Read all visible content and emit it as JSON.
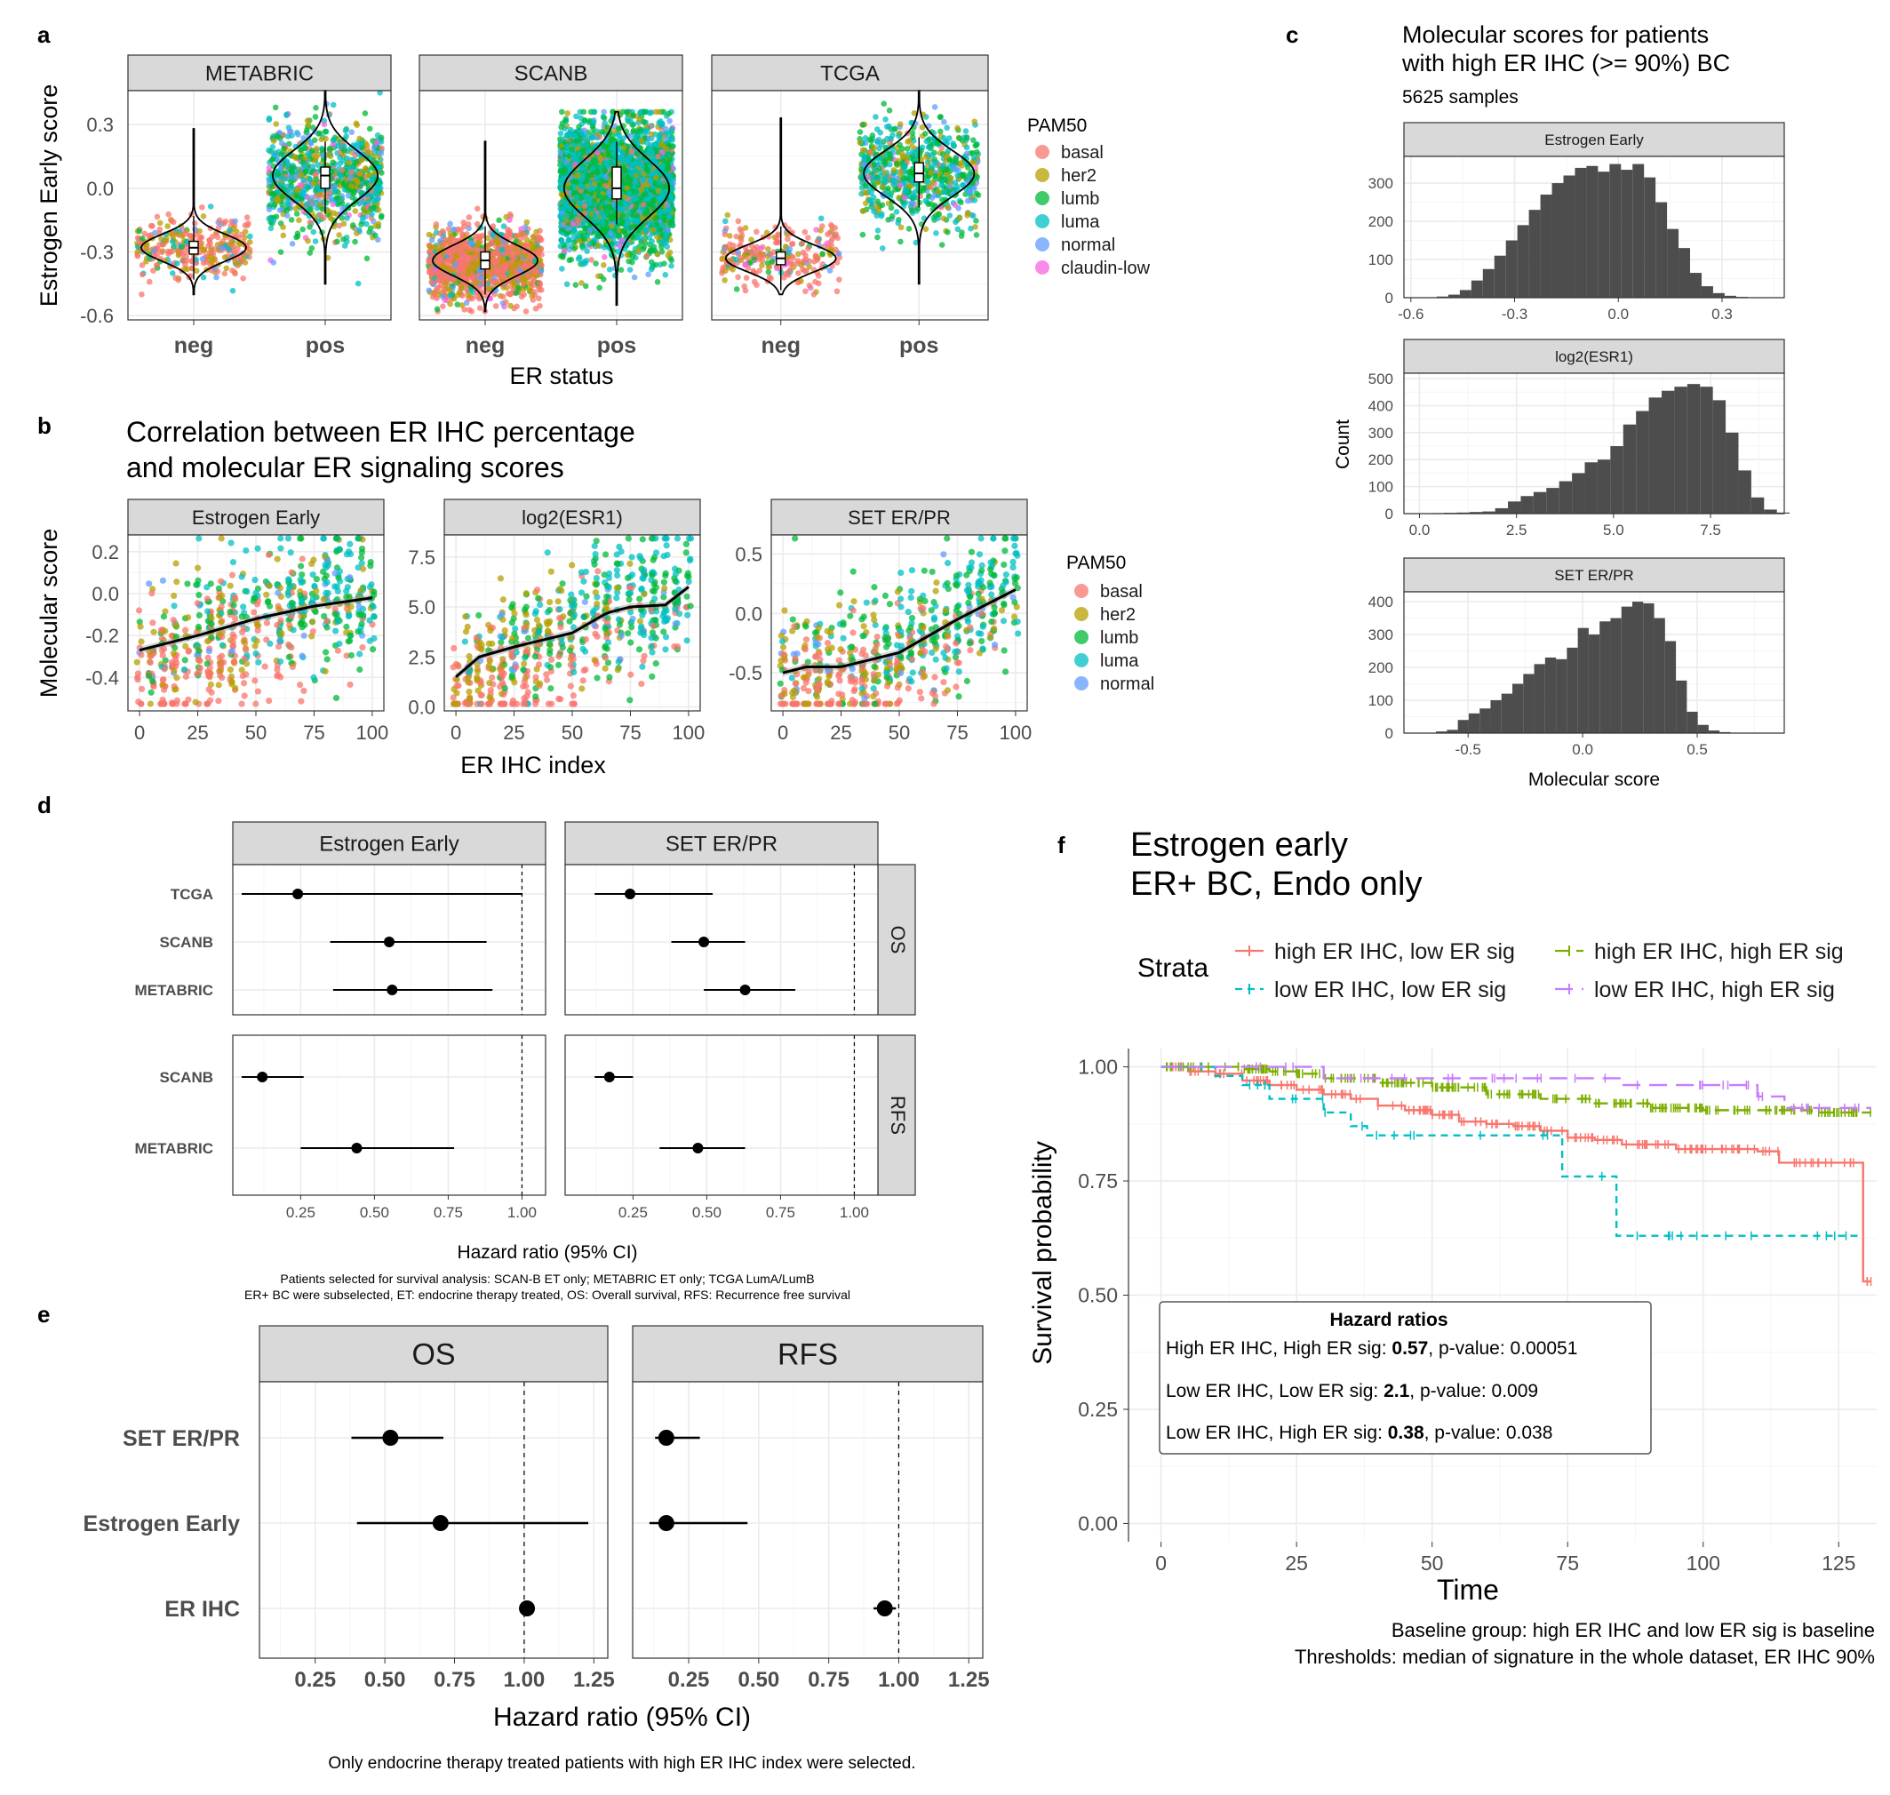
{
  "colors": {
    "strip_fill": "#d9d9d9",
    "grid_major": "#ebebeb",
    "grid_minor": "#f5f5f5",
    "hist_bar": "#4d4d4d",
    "pam50": {
      "basal": "#F8766D",
      "her2": "#B79F00",
      "lumb": "#00BA38",
      "luma": "#00BFC4",
      "normal": "#619CFF",
      "claudin-low": "#F564E3"
    },
    "strata": {
      "high_low": "#F8766D",
      "high_high": "#7CAE00",
      "low_low": "#00BFC4",
      "low_high": "#C77CFF"
    }
  },
  "panel_letters": {
    "a": "a",
    "b": "b",
    "c": "c",
    "d": "d",
    "e": "e",
    "f": "f"
  },
  "legend_pam50": {
    "title": "PAM50",
    "entries": [
      "basal",
      "her2",
      "lumb",
      "luma",
      "normal",
      "claudin-low"
    ]
  },
  "panel_a": {
    "ylabel": "Estrogen Early score",
    "xlabel": "ER status",
    "categories": [
      "neg",
      "pos"
    ],
    "yticks": [
      "0.3",
      "0.0",
      "-0.3",
      "-0.6"
    ],
    "ytick_values": [
      0.3,
      0.0,
      -0.3,
      -0.6
    ],
    "ylim": [
      -0.62,
      0.46
    ],
    "facets": [
      "METABRIC",
      "SCANB",
      "TCGA"
    ]
  },
  "panel_b": {
    "title_line1": "Correlation between ER IHC percentage",
    "title_line2": "and molecular ER signaling scores",
    "ylabel": "Molecular score",
    "xlabel": "ER IHC index",
    "xticks": [
      "0",
      "25",
      "50",
      "75",
      "100"
    ],
    "facets": [
      "Estrogen Early",
      "log2(ESR1)",
      "SET ER/PR"
    ],
    "yticks": [
      [
        "0.2",
        "0.0",
        "-0.2",
        "-0.4"
      ],
      [
        "7.5",
        "5.0",
        "2.5",
        "0.0"
      ],
      [
        "0.5",
        "0.0",
        "-0.5"
      ]
    ],
    "legend_entries": [
      "basal",
      "her2",
      "lumb",
      "luma",
      "normal"
    ]
  },
  "panel_c": {
    "title_line1": "Molecular scores for patients",
    "title_line2": "with high ER IHC (>= 90%) BC",
    "subtitle": "5625 samples",
    "ylabel": "Count",
    "xlabel": "Molecular score",
    "facets": [
      "Estrogen Early",
      "log2(ESR1)",
      "SET ER/PR"
    ],
    "xticks": [
      [
        "-0.6",
        "-0.3",
        "0.0",
        "0.3"
      ],
      [
        "0.0",
        "2.5",
        "5.0",
        "7.5"
      ],
      [
        "-0.5",
        "0.0",
        "0.5"
      ]
    ],
    "yticks": [
      [
        "300",
        "200",
        "100",
        "0"
      ],
      [
        "500",
        "400",
        "300",
        "200",
        "100",
        "0"
      ],
      [
        "400",
        "300",
        "200",
        "100",
        "0"
      ]
    ]
  },
  "panel_d": {
    "facets": [
      "Estrogen Early",
      "SET ER/PR"
    ],
    "rows": [
      "OS",
      "RFS"
    ],
    "xlabel": "Hazard ratio (95% CI)",
    "xticks": [
      "0.25",
      "0.50",
      "0.75",
      "1.00"
    ],
    "caption_line1": "Patients selected for survival analysis: SCAN-B ET only; METABRIC ET only; TCGA LumA/LumB",
    "caption_line2": "ER+ BC were subselected, ET: endocrine therapy treated, OS: Overall survival, RFS: Recurrence free survival",
    "os_labels": [
      "TCGA",
      "SCANB",
      "METABRIC"
    ],
    "rfs_labels": [
      "SCANB",
      "METABRIC"
    ]
  },
  "panel_e": {
    "facets": [
      "OS",
      "RFS"
    ],
    "labels": [
      "SET ER/PR",
      "Estrogen Early",
      "ER IHC"
    ],
    "xlabel": "Hazard ratio (95% CI)",
    "xticks": [
      "0.25",
      "0.50",
      "0.75",
      "1.00",
      "1.25"
    ],
    "caption": "Only endocrine therapy treated patients with high ER IHC index were selected."
  },
  "panel_f": {
    "title_line1": "Estrogen early",
    "title_line2": "ER+ BC, Endo only",
    "legend_title": "Strata",
    "legend_entries": [
      "high ER IHC, low ER sig",
      "high ER IHC, high ER sig",
      "low ER IHC, low ER sig",
      "low ER IHC, high ER sig"
    ],
    "ylabel": "Survival probability",
    "xlabel": "Time",
    "xticks": [
      "0",
      "25",
      "50",
      "75",
      "100",
      "125"
    ],
    "yticks": [
      "1.00",
      "0.75",
      "0.50",
      "0.25",
      "0.00"
    ],
    "hr_box": {
      "title": "Hazard ratios",
      "line1_pre": "High ER IHC, High ER sig: ",
      "line1_val": "0.57",
      "line1_post": ", p-value: 0.00051",
      "line2_pre": "Low ER IHC, Low ER sig: ",
      "line2_val": "2.1",
      "line2_post": ", p-value: 0.009",
      "line3_pre": "Low ER IHC, High ER sig: ",
      "line3_val": "0.38",
      "line3_post": ", p-value: 0.038"
    },
    "caption_line1": "Baseline group: high ER IHC and low ER sig is baseline",
    "caption_line2": "Thresholds: median of signature in the whole dataset, ER IHC 90%"
  },
  "chart_data": [
    {
      "id": "a",
      "type": "scatter",
      "title": "",
      "xlabel": "ER status",
      "ylabel": "Estrogen Early score",
      "ylim": [
        -0.62,
        0.46
      ],
      "facets": [
        "METABRIC",
        "SCANB",
        "TCGA"
      ],
      "categories": [
        "neg",
        "pos"
      ],
      "summary": [
        {
          "facet": "METABRIC",
          "group": "neg",
          "median": -0.28,
          "q1": -0.31,
          "q3": -0.25,
          "min": -0.5,
          "max": 0.28
        },
        {
          "facet": "METABRIC",
          "group": "pos",
          "median": 0.06,
          "q1": 0.0,
          "q3": 0.1,
          "min": -0.45,
          "max": 0.46
        },
        {
          "facet": "SCANB",
          "group": "neg",
          "median": -0.34,
          "q1": -0.38,
          "q3": -0.3,
          "min": -0.58,
          "max": 0.22
        },
        {
          "facet": "SCANB",
          "group": "pos",
          "median": 0.0,
          "q1": -0.05,
          "q3": 0.1,
          "min": -0.55,
          "max": 0.36
        },
        {
          "facet": "TCGA",
          "group": "neg",
          "median": -0.33,
          "q1": -0.36,
          "q3": -0.3,
          "min": -0.5,
          "max": 0.33
        },
        {
          "facet": "TCGA",
          "group": "pos",
          "median": 0.07,
          "q1": 0.03,
          "q3": 0.12,
          "min": -0.45,
          "max": 0.46
        }
      ]
    },
    {
      "id": "b",
      "type": "scatter",
      "xlabel": "ER IHC index",
      "ylabel": "Molecular score",
      "facets": [
        {
          "name": "Estrogen Early",
          "ylim": [
            -0.56,
            0.28
          ],
          "smooth_x": [
            0,
            25,
            50,
            75,
            100
          ],
          "smooth_y": [
            -0.27,
            -0.2,
            -0.12,
            -0.06,
            -0.02
          ]
        },
        {
          "name": "log2(ESR1)",
          "ylim": [
            -0.2,
            8.6
          ],
          "smooth_x": [
            0,
            10,
            25,
            50,
            65,
            75,
            90,
            100
          ],
          "smooth_y": [
            1.5,
            2.5,
            3.0,
            3.7,
            4.7,
            5.0,
            5.1,
            6.0
          ]
        },
        {
          "name": "SET ER/PR",
          "ylim": [
            -0.82,
            0.66
          ],
          "smooth_x": [
            0,
            10,
            25,
            50,
            75,
            100
          ],
          "smooth_y": [
            -0.5,
            -0.45,
            -0.45,
            -0.33,
            -0.05,
            0.2
          ]
        }
      ]
    },
    {
      "id": "c",
      "type": "bar",
      "xlabel": "Molecular score",
      "ylabel": "Count",
      "facets": [
        {
          "name": "Estrogen Early",
          "xlim": [
            -0.62,
            0.48
          ],
          "ylim": [
            0,
            370
          ],
          "bin_start": -0.525,
          "bin_width": 0.0333,
          "counts": [
            3,
            8,
            20,
            45,
            75,
            110,
            150,
            190,
            230,
            270,
            300,
            320,
            340,
            345,
            330,
            350,
            335,
            350,
            315,
            250,
            180,
            130,
            65,
            30,
            12,
            5,
            2
          ]
        },
        {
          "name": "log2(ESR1)",
          "xlim": [
            -0.4,
            9.4
          ],
          "ylim": [
            0,
            520
          ],
          "bin_start": 0.3,
          "bin_width": 0.33,
          "counts": [
            2,
            3,
            4,
            6,
            8,
            20,
            45,
            65,
            80,
            95,
            120,
            150,
            190,
            200,
            250,
            330,
            380,
            430,
            455,
            470,
            480,
            470,
            420,
            300,
            160,
            60,
            15,
            4
          ]
        },
        {
          "name": "SET ER/PR",
          "xlim": [
            -0.78,
            0.88
          ],
          "ylim": [
            0,
            430
          ],
          "bin_start": -0.64,
          "bin_width": 0.0476,
          "counts": [
            5,
            10,
            40,
            60,
            75,
            100,
            120,
            150,
            180,
            210,
            230,
            225,
            260,
            320,
            300,
            340,
            350,
            385,
            400,
            395,
            350,
            280,
            160,
            65,
            25,
            8,
            3
          ]
        }
      ]
    },
    {
      "id": "d",
      "type": "scatter",
      "xlabel": "Hazard ratio (95% CI)",
      "xlim": [
        0.02,
        1.08
      ],
      "facets": [
        "Estrogen Early",
        "SET ER/PR"
      ],
      "rows": [
        {
          "row": "OS",
          "labels": [
            "TCGA",
            "SCANB",
            "METABRIC"
          ],
          "estrogen_early": [
            [
              0.24,
              0.05,
              1.0
            ],
            [
              0.55,
              0.35,
              0.88
            ],
            [
              0.56,
              0.36,
              0.9
            ]
          ],
          "set_erpr": [
            [
              0.24,
              0.12,
              0.52
            ],
            [
              0.49,
              0.38,
              0.63
            ],
            [
              0.63,
              0.49,
              0.8
            ]
          ]
        },
        {
          "row": "RFS",
          "labels": [
            "SCANB",
            "METABRIC"
          ],
          "estrogen_early": [
            [
              0.12,
              0.05,
              0.26
            ],
            [
              0.44,
              0.25,
              0.77
            ]
          ],
          "set_erpr": [
            [
              0.17,
              0.12,
              0.25
            ],
            [
              0.47,
              0.34,
              0.63
            ]
          ]
        }
      ]
    },
    {
      "id": "e",
      "type": "scatter",
      "xlabel": "Hazard ratio (95% CI)",
      "xlim": [
        0.05,
        1.3
      ],
      "labels": [
        "SET ER/PR",
        "Estrogen Early",
        "ER IHC"
      ],
      "OS": [
        [
          0.52,
          0.38,
          0.71
        ],
        [
          0.7,
          0.4,
          1.23
        ],
        [
          1.01,
          0.99,
          1.03
        ]
      ],
      "RFS": [
        [
          0.17,
          0.13,
          0.29
        ],
        [
          0.17,
          0.11,
          0.46
        ],
        [
          0.95,
          0.91,
          0.99
        ]
      ]
    },
    {
      "id": "f",
      "type": "line",
      "title": "Estrogen early ER+ BC, Endo only",
      "xlabel": "Time",
      "ylabel": "Survival probability",
      "xlim": [
        -6,
        132
      ],
      "ylim": [
        -0.04,
        1.04
      ],
      "series": [
        {
          "name": "high ER IHC, low ER sig",
          "x": [
            0,
            5,
            10,
            15,
            20,
            25,
            30,
            35,
            40,
            45,
            50,
            55,
            60,
            65,
            70,
            75,
            80,
            85,
            90,
            95,
            100,
            105,
            110,
            114,
            120,
            129,
            129.5,
            131
          ],
          "y": [
            1.0,
            0.99,
            0.985,
            0.97,
            0.96,
            0.95,
            0.94,
            0.93,
            0.915,
            0.905,
            0.895,
            0.88,
            0.875,
            0.87,
            0.86,
            0.845,
            0.84,
            0.83,
            0.83,
            0.82,
            0.82,
            0.82,
            0.815,
            0.79,
            0.79,
            0.79,
            0.53,
            0.53
          ]
        },
        {
          "name": "high ER IHC, high ER sig",
          "x": [
            0,
            10,
            15,
            20,
            25,
            30,
            40,
            50,
            60,
            70,
            80,
            90,
            100,
            110,
            120,
            131
          ],
          "y": [
            1.0,
            1.0,
            0.995,
            0.99,
            0.985,
            0.975,
            0.965,
            0.955,
            0.94,
            0.93,
            0.92,
            0.91,
            0.905,
            0.905,
            0.9,
            0.9
          ]
        },
        {
          "name": "low ER IHC, low ER sig",
          "x": [
            0,
            10,
            14,
            15,
            20,
            25,
            30,
            35,
            38,
            45,
            50,
            60,
            70,
            73,
            74,
            82,
            84,
            85,
            100,
            129
          ],
          "y": [
            1.0,
            0.98,
            0.98,
            0.96,
            0.93,
            0.93,
            0.9,
            0.87,
            0.85,
            0.85,
            0.85,
            0.85,
            0.85,
            0.85,
            0.76,
            0.76,
            0.63,
            0.63,
            0.63,
            0.63
          ]
        },
        {
          "name": "low ER IHC, high ER sig",
          "x": [
            0,
            20,
            30,
            40,
            50,
            60,
            70,
            75,
            85,
            90,
            100,
            110,
            115,
            120,
            131
          ],
          "y": [
            1.0,
            1.0,
            0.975,
            0.975,
            0.975,
            0.975,
            0.975,
            0.975,
            0.96,
            0.96,
            0.96,
            0.935,
            0.91,
            0.91,
            0.91
          ]
        }
      ]
    }
  ]
}
